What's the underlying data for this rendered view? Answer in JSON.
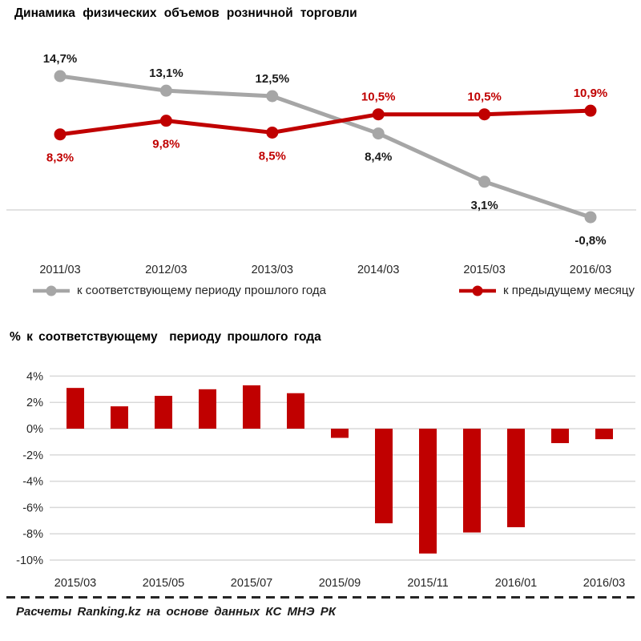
{
  "colors": {
    "red": "#c00000",
    "gray": "#a6a6a6",
    "gridline": "#d9d9d9",
    "text_dark": "#1a1a1a"
  },
  "chart_data": [
    {
      "type": "line",
      "title": "Динамика физических объемов розничной торговли",
      "categories": [
        "2011/03",
        "2012/03",
        "2013/03",
        "2014/03",
        "2015/03",
        "2016/03"
      ],
      "series": [
        {
          "name": "к соответствующему периоду прошлого года",
          "color": "#a6a6a6",
          "label_color": "#1a1a1a",
          "values": [
            14.7,
            13.1,
            12.5,
            8.4,
            3.1,
            -0.8
          ],
          "labels": [
            "14,7%",
            "13,1%",
            "12,5%",
            "8,4%",
            "3,1%",
            "-0,8%"
          ],
          "label_pos": [
            "above",
            "above",
            "above",
            "below",
            "below",
            "below"
          ]
        },
        {
          "name": "к предыдущему месяцу",
          "color": "#c00000",
          "label_color": "#c00000",
          "values": [
            8.3,
            9.8,
            8.5,
            10.5,
            10.5,
            10.9
          ],
          "labels": [
            "8,3%",
            "9,8%",
            "8,5%",
            "10,5%",
            "10,5%",
            "10,9%"
          ],
          "label_pos": [
            "below",
            "below",
            "below",
            "above",
            "above",
            "above"
          ]
        }
      ],
      "legend_position": "bottom",
      "grid": "zero-line-only",
      "unit": "%"
    },
    {
      "type": "bar",
      "title": "% к соответствующему  периоду прошлого года",
      "categories": [
        "2015/03",
        "2015/04",
        "2015/05",
        "2015/06",
        "2015/07",
        "2015/08",
        "2015/09",
        "2015/10",
        "2015/11",
        "2015/12",
        "2016/01",
        "2016/02",
        "2016/03"
      ],
      "values": [
        3.1,
        1.7,
        2.5,
        3.0,
        3.3,
        2.7,
        -0.7,
        -7.2,
        -9.5,
        -7.9,
        -7.5,
        -1.1,
        -0.8
      ],
      "bar_color": "#c00000",
      "x_tick_labels": [
        "2015/03",
        "2015/05",
        "2015/07",
        "2015/09",
        "2015/11",
        "2016/01",
        "2016/03"
      ],
      "y_ticks": [
        "4%",
        "2%",
        "0%",
        "-2%",
        "-4%",
        "-6%",
        "-8%",
        "-10%"
      ],
      "y_tick_values": [
        4,
        2,
        0,
        -2,
        -4,
        -6,
        -8,
        -10
      ],
      "ylim": [
        -10,
        4
      ],
      "grid": "horizontal",
      "unit": "%"
    }
  ],
  "footer": {
    "source": "Расчеты Ranking.kz на основе данных КС МНЭ РК"
  }
}
